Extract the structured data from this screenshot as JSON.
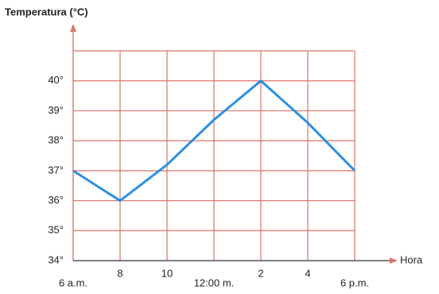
{
  "chart_data": {
    "type": "line",
    "y_label": "Temperatura (°C)",
    "x_label": "Hora",
    "x": [
      6,
      8,
      10,
      12,
      14,
      16,
      18
    ],
    "series": [
      {
        "color": "#2e8fe0",
        "values": [
          37,
          36,
          37.2,
          38.7,
          40,
          38.6,
          37
        ]
      }
    ],
    "xlim": [
      6,
      18
    ],
    "xticks": [
      {
        "value": 6,
        "label": "6 a.m."
      },
      8,
      10,
      {
        "value": 12,
        "label": "12:00 m."
      },
      {
        "value": 14,
        "label": "2"
      },
      {
        "value": 16,
        "label": "4"
      },
      {
        "value": 18,
        "label": "6 p.m."
      }
    ],
    "ylim": [
      34,
      41
    ],
    "yticks": [
      {
        "value": 34,
        "label": "34°"
      },
      {
        "value": 35,
        "label": "35°"
      },
      {
        "value": 36,
        "label": "36°"
      },
      {
        "value": 37,
        "label": "37°"
      },
      {
        "value": 38,
        "label": "38°"
      },
      {
        "value": 39,
        "label": "39°"
      },
      {
        "value": 40,
        "label": "40°"
      }
    ],
    "grid": true,
    "grid_color": "#d9746a"
  }
}
